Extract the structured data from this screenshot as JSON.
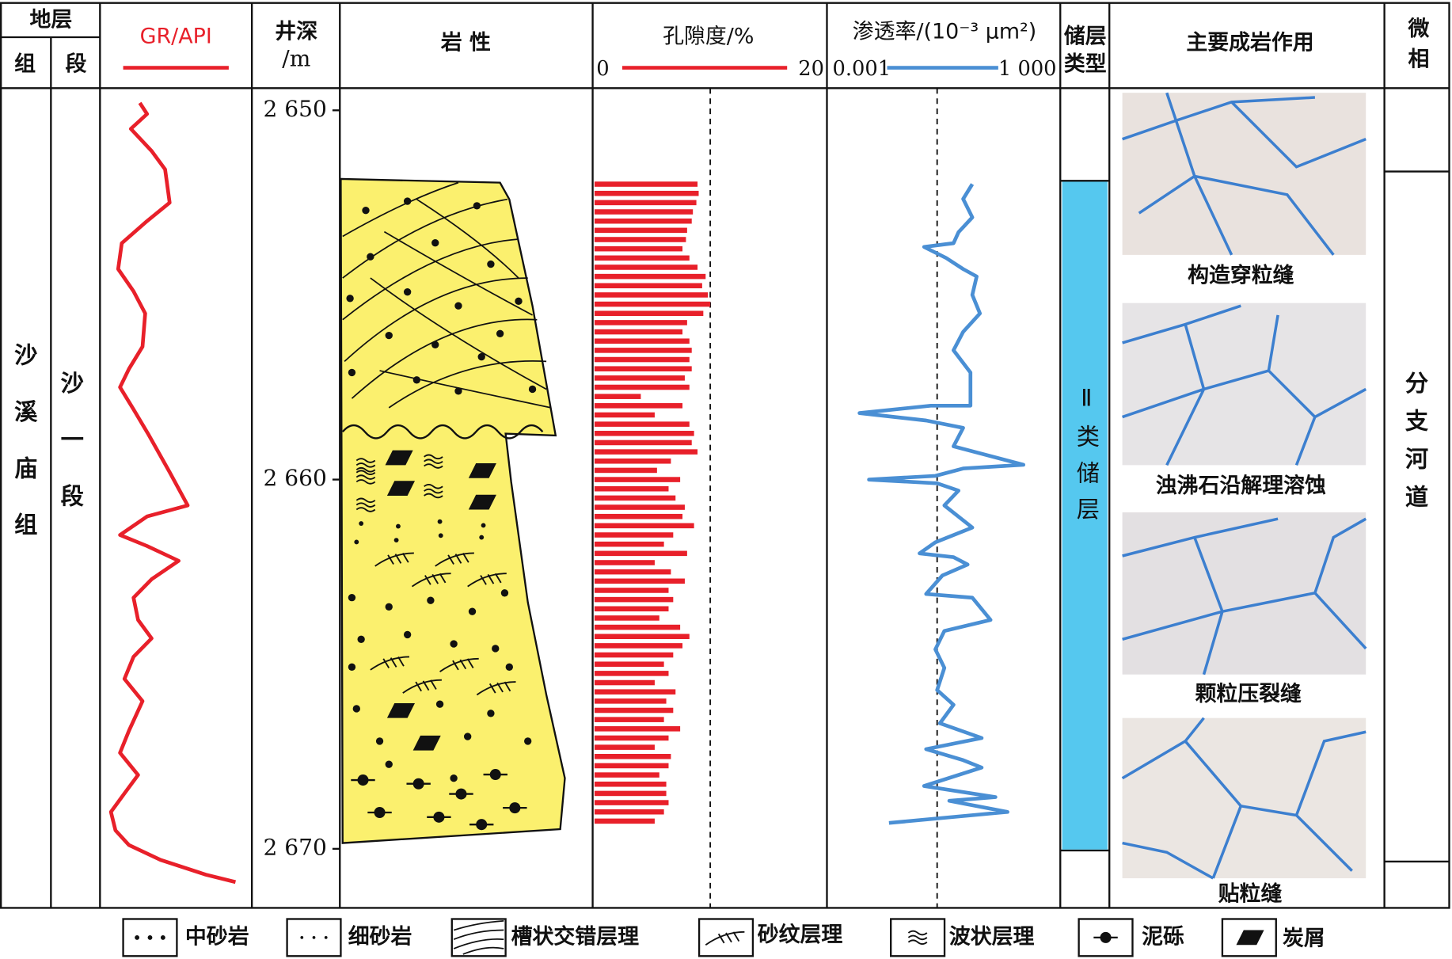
{
  "header": {
    "stratum": "地层",
    "formation_col": "组",
    "member_col": "段",
    "depth": "井深",
    "depth_unit": "/m",
    "lithology": "岩 性",
    "reservoir_type": [
      "储层",
      "类型"
    ],
    "diagenesis": "主要成岩作用",
    "facies": [
      "微",
      "相"
    ]
  },
  "formation": "沙溪庙组",
  "member": "沙一段",
  "reservoir": "Ⅱ类储层",
  "facies": "分支河道",
  "photos": [
    "构造穿粒缝",
    "浊沸石沿解理溶蚀",
    "颗粒压裂缝",
    "贴粒缝"
  ],
  "legend": [
    "中砂岩",
    "细砂岩",
    "槽状交错层理",
    "砂纹层理",
    "波状层理",
    "泥砾",
    "炭屑"
  ],
  "chart_data": [
    {
      "type": "line",
      "title": "GR/API",
      "color": "#e8202a",
      "xlim": [
        20,
        180
      ],
      "ylim": [
        2649.4,
        2671.6
      ],
      "yticks": [
        {
          "value": 2650,
          "label": "2 650"
        },
        {
          "value": 2660,
          "label": "2 660"
        },
        {
          "value": 2670,
          "label": "2 670"
        }
      ],
      "depth": [
        2649.8,
        2650.1,
        2650.5,
        2651.1,
        2651.6,
        2652.5,
        2653.0,
        2653.6,
        2654.3,
        2654.9,
        2655.5,
        2656.4,
        2657.0,
        2657.5,
        2658.1,
        2658.8,
        2659.8,
        2660.7,
        2661.0,
        2661.5,
        2661.8,
        2662.2,
        2662.7,
        2663.2,
        2663.8,
        2664.3,
        2664.8,
        2665.4,
        2666.0,
        2666.8,
        2667.4,
        2668.0,
        2668.5,
        2669.0,
        2669.5,
        2669.9,
        2670.3,
        2670.7,
        2670.9
      ],
      "values": [
        60,
        68,
        50,
        73,
        88,
        93,
        68,
        40,
        36,
        53,
        66,
        63,
        48,
        38,
        53,
        70,
        93,
        113,
        68,
        38,
        68,
        103,
        73,
        53,
        58,
        73,
        53,
        43,
        63,
        48,
        38,
        58,
        43,
        28,
        33,
        48,
        83,
        133,
        166
      ]
    },
    {
      "type": "bar",
      "title": "孔隙度/%",
      "color": "#e8202a",
      "xlim": [
        0,
        20
      ],
      "xticks": [
        0,
        20
      ],
      "cutoff": 10,
      "depth": [
        2652.0,
        2652.25,
        2652.5,
        2652.75,
        2653.0,
        2653.25,
        2653.5,
        2653.75,
        2654.0,
        2654.25,
        2654.5,
        2654.75,
        2655.0,
        2655.25,
        2655.5,
        2655.75,
        2656.0,
        2656.25,
        2656.5,
        2656.75,
        2657.0,
        2657.25,
        2657.5,
        2657.75,
        2658.0,
        2658.25,
        2658.5,
        2658.75,
        2659.0,
        2659.25,
        2659.5,
        2659.75,
        2660.0,
        2660.25,
        2660.5,
        2660.75,
        2661.0,
        2661.25,
        2661.5,
        2661.75,
        2662.0,
        2662.25,
        2662.5,
        2662.75,
        2663.0,
        2663.25,
        2663.5,
        2663.75,
        2664.0,
        2664.25,
        2664.5,
        2664.75,
        2665.0,
        2665.25,
        2665.5,
        2665.75,
        2666.0,
        2666.25,
        2666.5,
        2666.75,
        2667.0,
        2667.25,
        2667.5,
        2667.75,
        2668.0,
        2668.25,
        2668.5,
        2668.75,
        2669.0,
        2669.25
      ],
      "values": [
        8.9,
        9.0,
        8.8,
        8.5,
        8.4,
        8.0,
        7.9,
        7.6,
        8.2,
        8.9,
        9.6,
        9.3,
        9.8,
        10.0,
        9.4,
        8.0,
        7.6,
        8.2,
        8.4,
        8.2,
        8.4,
        7.8,
        8.2,
        4.0,
        7.6,
        5.2,
        8.2,
        8.6,
        8.4,
        8.9,
        6.6,
        5.4,
        7.4,
        6.4,
        7.0,
        7.8,
        7.6,
        8.6,
        6.8,
        6.0,
        8.0,
        5.2,
        6.6,
        7.8,
        6.4,
        6.8,
        6.4,
        5.6,
        7.4,
        8.2,
        7.6,
        6.8,
        6.0,
        6.4,
        5.2,
        7.0,
        6.2,
        6.8,
        6.0,
        7.4,
        6.4,
        5.2,
        6.6,
        6.4,
        5.6,
        6.2,
        6.2,
        6.4,
        6.0,
        5.2
      ]
    },
    {
      "type": "line",
      "title": "渗透率/(10⁻³ μm²)",
      "color": "#4a8fd4",
      "xlog": true,
      "xlim": [
        0.001,
        1000
      ],
      "xticks": [
        0.001,
        {
          "value": 1000,
          "label": "1 000"
        }
      ],
      "cutoff": 1,
      "depth": [
        2652.0,
        2652.4,
        2652.9,
        2653.3,
        2653.6,
        2653.7,
        2654.0,
        2654.3,
        2654.5,
        2655.0,
        2655.5,
        2656.0,
        2656.5,
        2657.1,
        2658.0,
        2658.0,
        2658.2,
        2658.4,
        2658.6,
        2659.1,
        2659.6,
        2659.7,
        2659.9,
        2660.0,
        2660.1,
        2660.3,
        2660.7,
        2661.3,
        2661.7,
        2662.0,
        2662.1,
        2662.3,
        2662.6,
        2663.1,
        2663.2,
        2663.8,
        2664.1,
        2664.6,
        2665.1,
        2665.7,
        2666.1,
        2666.6,
        2667.0,
        2667.3,
        2667.6,
        2667.8,
        2668.3,
        2668.6,
        2668.7,
        2669.0,
        2669.3
      ],
      "values": [
        9.8,
        5.4,
        9.8,
        4.0,
        2.9,
        0.43,
        1.8,
        5.4,
        13,
        9.8,
        16,
        5.4,
        2.9,
        8.7,
        8.7,
        0.66,
        0.0065,
        0.49,
        5.4,
        2.9,
        270,
        5.4,
        0.89,
        0.012,
        1.0,
        4.0,
        1.6,
        9.8,
        0.89,
        0.32,
        2.9,
        7.2,
        1.4,
        0.49,
        9.8,
        32,
        1.6,
        0.89,
        1.6,
        1.0,
        2.9,
        1.2,
        18,
        0.49,
        5.4,
        18,
        0.43,
        44,
        2.2,
        96,
        0.044
      ]
    }
  ]
}
